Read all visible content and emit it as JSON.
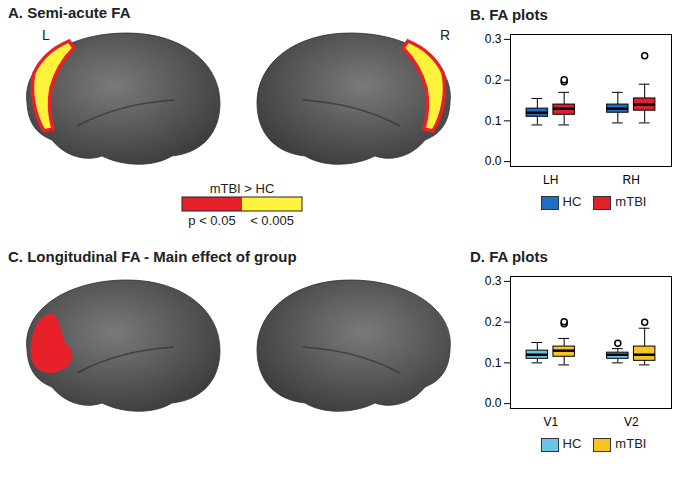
{
  "figure": {
    "panels": [
      {
        "title": "A. Semi-acute FA",
        "hemisphere_labels": [
          "L",
          "R"
        ],
        "legend": {
          "title": "mTBI > HC",
          "entries": [
            {
              "label": "p < 0.05",
              "color": "#e8202a"
            },
            {
              "label": "< 0.005",
              "color": "#fff23a"
            }
          ]
        }
      },
      {
        "title": "C. Longitudinal FA - Main effect of group"
      }
    ]
  },
  "chart_data": [
    {
      "type": "box",
      "title": "B. FA plots",
      "categories": [
        "LH",
        "RH"
      ],
      "series": [
        {
          "name": "HC",
          "color": "#1f6fc5",
          "low": [
            0.09,
            0.095
          ],
          "q1": [
            0.11,
            0.12
          ],
          "median": [
            0.12,
            0.13
          ],
          "q3": [
            0.13,
            0.14
          ],
          "high": [
            0.155,
            0.17
          ],
          "outliers": [
            [],
            []
          ]
        },
        {
          "name": "mTBI",
          "color": "#e0202b",
          "low": [
            0.09,
            0.095
          ],
          "q1": [
            0.115,
            0.125
          ],
          "median": [
            0.13,
            0.14
          ],
          "q3": [
            0.14,
            0.155
          ],
          "high": [
            0.17,
            0.19
          ],
          "outliers": [
            [
              0.196,
              0.201
            ],
            [
              0.26
            ]
          ]
        }
      ],
      "ylim": [
        -0.012,
        0.312
      ],
      "yticks": [
        {
          "value": 0,
          "label": "0.0"
        },
        0.1,
        0.2,
        0.3
      ],
      "legend": "bottom"
    },
    {
      "type": "box",
      "title": "D. FA plots",
      "categories": [
        "V1",
        "V2"
      ],
      "series": [
        {
          "name": "HC",
          "color": "#6cc5e8",
          "low": [
            0.1,
            0.1
          ],
          "q1": [
            0.11,
            0.11
          ],
          "median": [
            0.12,
            0.12
          ],
          "q3": [
            0.13,
            0.125
          ],
          "high": [
            0.15,
            0.135
          ],
          "outliers": [
            [],
            [
              0.148
            ]
          ]
        },
        {
          "name": "mTBI",
          "color": "#f7c51e",
          "low": [
            0.095,
            0.095
          ],
          "q1": [
            0.115,
            0.105
          ],
          "median": [
            0.13,
            0.12
          ],
          "q3": [
            0.14,
            0.14
          ],
          "high": [
            0.16,
            0.185
          ],
          "outliers": [
            [
              0.196,
              0.201
            ],
            [
              0.2
            ]
          ]
        }
      ],
      "ylim": [
        -0.012,
        0.312
      ],
      "yticks": [
        {
          "value": 0,
          "label": "0.0"
        },
        0.1,
        0.2,
        0.3
      ],
      "legend": "bottom"
    }
  ]
}
